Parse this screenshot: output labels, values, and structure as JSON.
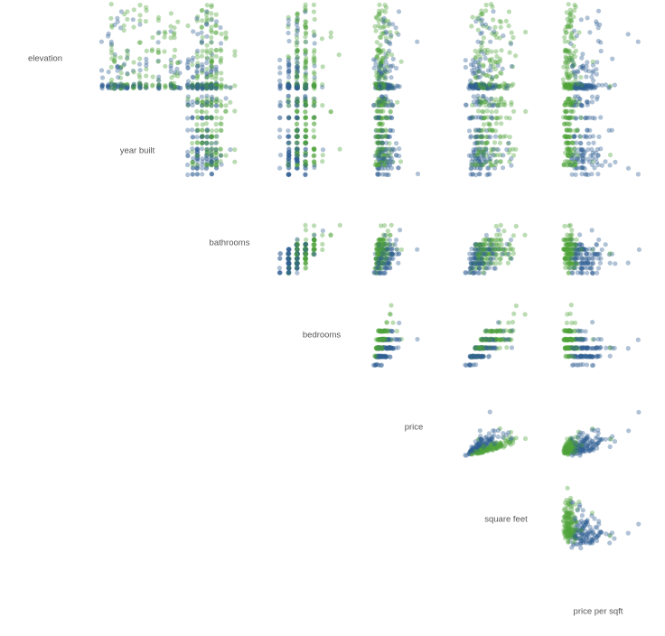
{
  "chart_data": {
    "type": "scatter",
    "subtype": "scatter-matrix (upper triangle)",
    "variables": [
      "elevation",
      "year built",
      "bathrooms",
      "bedrooms",
      "price",
      "square feet",
      "price per sqft"
    ],
    "grid": false,
    "axes_visible": false,
    "series": [
      {
        "color": "#2f5f94"
      },
      {
        "color": "#4ea23a"
      }
    ],
    "ranges": {
      "elevation": [
        0,
        240
      ],
      "year built": [
        1880,
        2015
      ],
      "bathrooms": [
        1,
        10
      ],
      "bedrooms": [
        0,
        10
      ],
      "price": [
        0,
        27000000
      ],
      "square feet": [
        300,
        10000
      ],
      "price per sqft": [
        250,
        4600
      ]
    },
    "point_opacity": 0.38,
    "points": {
      "count": 260,
      "series_0": "most frequent at low elevation (~0-15), wider price and price per sqft spread",
      "series_1": "mixed elevation up to ~240, lower price per sqft, smaller homes"
    }
  }
}
